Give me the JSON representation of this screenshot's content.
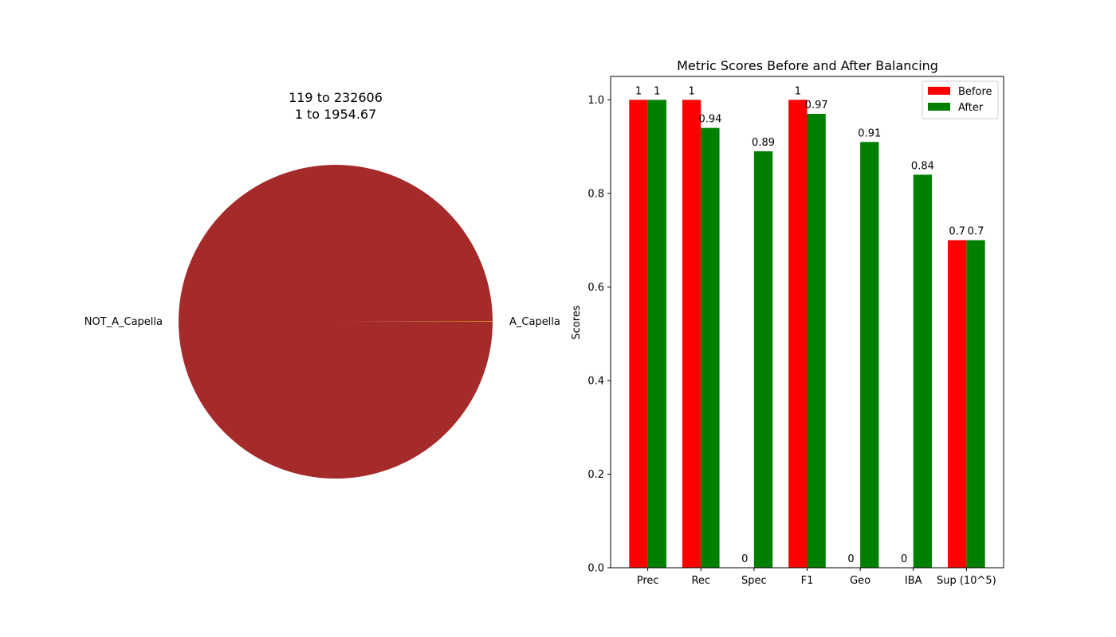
{
  "chart_data": [
    {
      "type": "pie",
      "title_lines": [
        "119 to 232606",
        "1 to 1954.67"
      ],
      "labels": [
        "A_Capella",
        "NOT_A_Capella"
      ],
      "values": [
        119,
        232606
      ],
      "colors": [
        "#ffd700",
        "#a52a2a"
      ]
    },
    {
      "type": "bar",
      "title": "Metric Scores Before and After Balancing",
      "xlabel": "",
      "ylabel": "Scores",
      "categories": [
        "Prec",
        "Rec",
        "Spec",
        "F1",
        "Geo",
        "IBA",
        "Sup (10^5)"
      ],
      "series": [
        {
          "name": "Before",
          "color": "#ff0000",
          "values": [
            1,
            1,
            0,
            1,
            0,
            0,
            0.7
          ],
          "labels": [
            "1",
            "1",
            "0",
            "1",
            "0",
            "0",
            "0.7"
          ]
        },
        {
          "name": "After",
          "color": "#008000",
          "values": [
            1,
            0.94,
            0.89,
            0.97,
            0.91,
            0.84,
            0.7
          ],
          "labels": [
            "1",
            "0.94",
            "0.89",
            "0.97",
            "0.91",
            "0.84",
            "0.7"
          ]
        }
      ],
      "ylim": [
        0,
        1.05
      ],
      "yticks": [
        0.0,
        0.2,
        0.4,
        0.6,
        0.8,
        1.0
      ],
      "ytick_labels": [
        "0.0",
        "0.2",
        "0.4",
        "0.6",
        "0.8",
        "1.0"
      ],
      "legend_position": "top-right",
      "grid": false
    }
  ]
}
